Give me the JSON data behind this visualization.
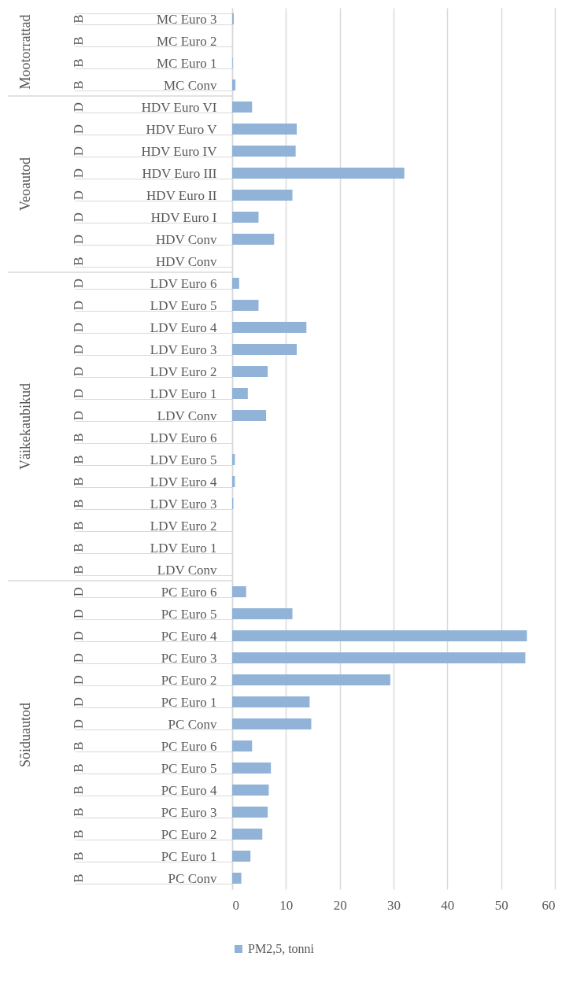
{
  "chart_data": {
    "type": "bar",
    "orientation": "horizontal",
    "categories": [
      "MC Euro 3",
      "MC Euro 2",
      "MC Euro 1",
      "MC Conv",
      "HDV Euro VI",
      "HDV Euro V",
      "HDV Euro IV",
      "HDV Euro III",
      "HDV Euro II",
      "HDV Euro I",
      "HDV Conv",
      "HDV Conv",
      "LDV Euro 6",
      "LDV Euro 5",
      "LDV Euro 4",
      "LDV Euro 3",
      "LDV Euro 2",
      "LDV Euro 1",
      "LDV Conv",
      "LDV Euro 6",
      "LDV Euro 5",
      "LDV Euro 4",
      "LDV Euro 3",
      "LDV Euro 2",
      "LDV Euro 1",
      "LDV Conv",
      "PC Euro 6",
      "PC Euro 5",
      "PC Euro 4",
      "PC Euro 3",
      "PC Euro 2",
      "PC Euro 1",
      "PC Conv",
      "PC Euro 6",
      "PC Euro 5",
      "PC Euro 4",
      "PC Euro 3",
      "PC Euro 2",
      "PC Euro 1",
      "PC Conv"
    ],
    "series": [
      {
        "name": "PM2,5, tonni",
        "color": "#91b3d7",
        "values": [
          0.3,
          0,
          0.1,
          0.6,
          3.7,
          12.0,
          11.8,
          32.0,
          11.2,
          4.9,
          7.8,
          0,
          1.3,
          4.9,
          13.8,
          12.0,
          6.6,
          2.9,
          6.3,
          0,
          0.5,
          0.5,
          0.2,
          0,
          0,
          0,
          2.6,
          11.2,
          54.8,
          54.5,
          29.4,
          14.4,
          14.7,
          3.7,
          7.2,
          6.8,
          6.6,
          5.6,
          3.4,
          1.7
        ]
      }
    ],
    "xlim": [
      0,
      60
    ],
    "xticks": [
      0,
      10,
      20,
      30,
      40,
      50,
      60
    ],
    "grid": "x",
    "legend": "bottom",
    "annotations": [
      "B",
      "B",
      "B",
      "B",
      "D",
      "D",
      "D",
      "D",
      "D",
      "D",
      "D",
      "B",
      "D",
      "D",
      "D",
      "D",
      "D",
      "D",
      "D",
      "B",
      "B",
      "B",
      "B",
      "B",
      "B",
      "B",
      "D",
      "D",
      "D",
      "D",
      "D",
      "D",
      "D",
      "B",
      "B",
      "B",
      "B",
      "B",
      "B",
      "B",
      "Mootorrattad",
      "Veoautod",
      "Väikekaubikud",
      "Sõiduautod"
    ]
  }
}
